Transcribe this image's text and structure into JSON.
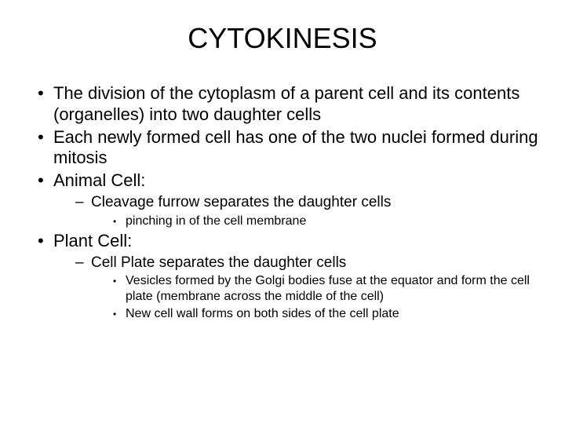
{
  "title": "CYTOKINESIS",
  "bullets": {
    "b1": "The division of the cytoplasm of a parent cell and its contents (organelles) into two daughter cells",
    "b2": "Each newly formed cell has one of the two nuclei formed during mitosis",
    "b3": "Animal Cell:",
    "b3_1": "Cleavage furrow separates the daughter cells",
    "b3_1_1": "pinching in of the cell membrane",
    "b4": "Plant Cell:",
    "b4_1": "Cell Plate separates the daughter cells",
    "b4_1_1": "Vesicles formed by the Golgi bodies fuse at the equator and form the cell plate (membrane across the middle of the cell)",
    "b4_1_2": "New cell wall forms on both sides of the cell plate"
  },
  "style": {
    "background_color": "#ffffff",
    "text_color": "#000000",
    "title_fontsize": 36,
    "level1_fontsize": 22,
    "level2_fontsize": 19,
    "level3_fontsize": 16,
    "font_family": "Arial"
  }
}
